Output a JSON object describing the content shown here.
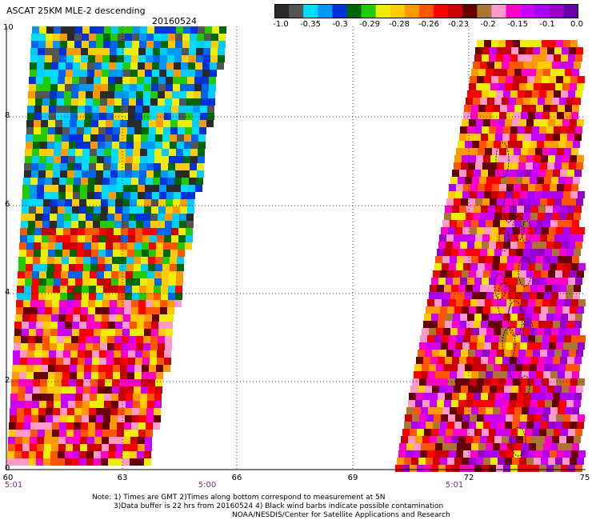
{
  "header": {
    "title": "ASCAT 25KM MLE-2 descending",
    "date": "20160524"
  },
  "colorbar": {
    "labels": [
      "-1.0",
      "-0.35",
      "-0.3",
      "-0.29",
      "-0.28",
      "-0.26",
      "-0.23",
      "-0.2",
      "-0.15",
      "-0.1",
      "0.0"
    ],
    "colors": [
      "#2a2a2a",
      "#555555",
      "#00ddff",
      "#0099ff",
      "#0033dd",
      "#006600",
      "#22cc00",
      "#eeee00",
      "#ffcc00",
      "#ff9900",
      "#ff5500",
      "#ff0000",
      "#cc0000",
      "#660000",
      "#aa7733",
      "#ff99cc",
      "#ff00cc",
      "#cc00ff",
      "#aa00ff",
      "#9900cc",
      "#6600aa"
    ]
  },
  "axes": {
    "y_ticks": [
      "0",
      "2",
      "4",
      "6",
      "8",
      "10"
    ],
    "x_ticks": [
      "60",
      "63",
      "66",
      "69",
      "72",
      "75"
    ],
    "time_labels": [
      "5:01",
      "5:00",
      "5:01"
    ]
  },
  "notes": {
    "line1": "Note: 1) Times are GMT 2)Times along bottom correspond to measurement at 5N",
    "line2": "3)Data buffer is 22 hrs from 20160524 4) Black wind barbs indicate possible contamination",
    "line3": "NOAA/NESDIS/Center for Satellite Applications and Research"
  }
}
